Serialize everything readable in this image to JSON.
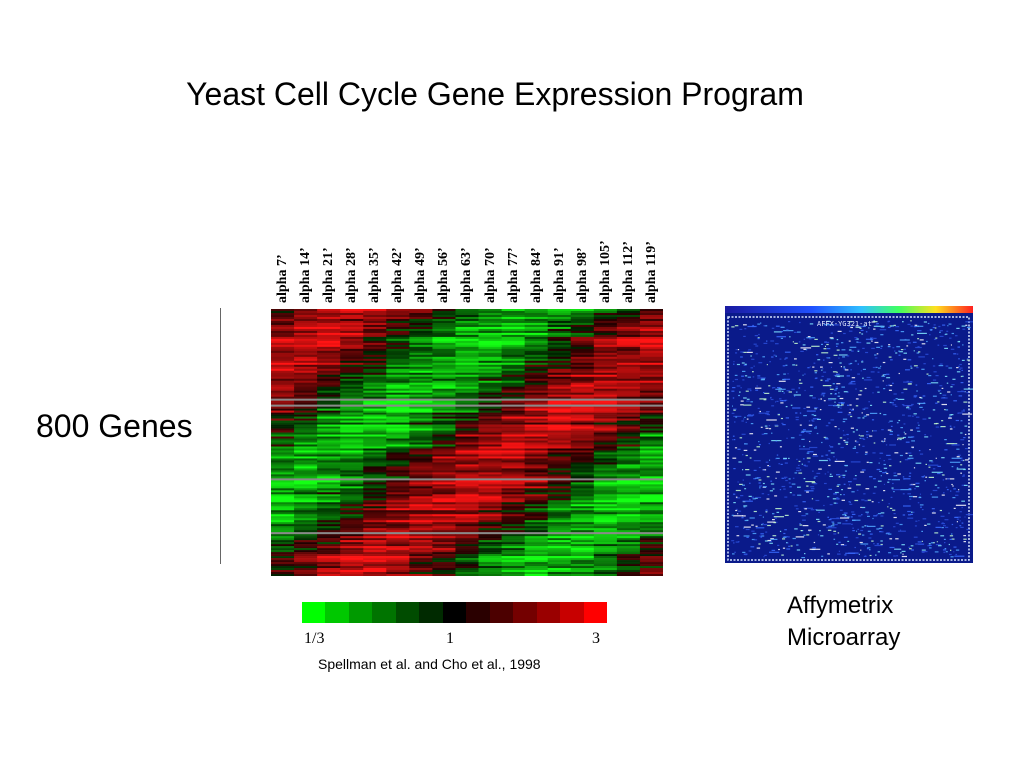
{
  "title": "Yeast Cell Cycle Gene Expression Program",
  "rows_label": "800 Genes",
  "chart_data": {
    "type": "heatmap",
    "columns": [
      "alpha 7’",
      "alpha 14’",
      "alpha 21’",
      "alpha 28’",
      "alpha 35’",
      "alpha 42’",
      "alpha 49’",
      "alpha 56’",
      "alpha 63’",
      "alpha 70’",
      "alpha 77’",
      "alpha 84’",
      "alpha 91’",
      "alpha 98’",
      "alpha 105’",
      "alpha 112’",
      "alpha 119’"
    ],
    "row_count": 800,
    "row_label": "800 Genes",
    "colorscale": {
      "tick_labels": [
        "1/3",
        "1",
        "3"
      ],
      "colors": [
        "#00ff00",
        "#00c800",
        "#009a00",
        "#007400",
        "#004c00",
        "#002a00",
        "#000000",
        "#2a0000",
        "#4c0000",
        "#740000",
        "#9a0000",
        "#c80000",
        "#ff0000"
      ]
    }
  },
  "microarray": {
    "label": "AFFX-YG321-at",
    "caption_lines": [
      "Affymetrix",
      "Microarray"
    ]
  },
  "citation": "Spellman et al. and Cho et al., 1998"
}
